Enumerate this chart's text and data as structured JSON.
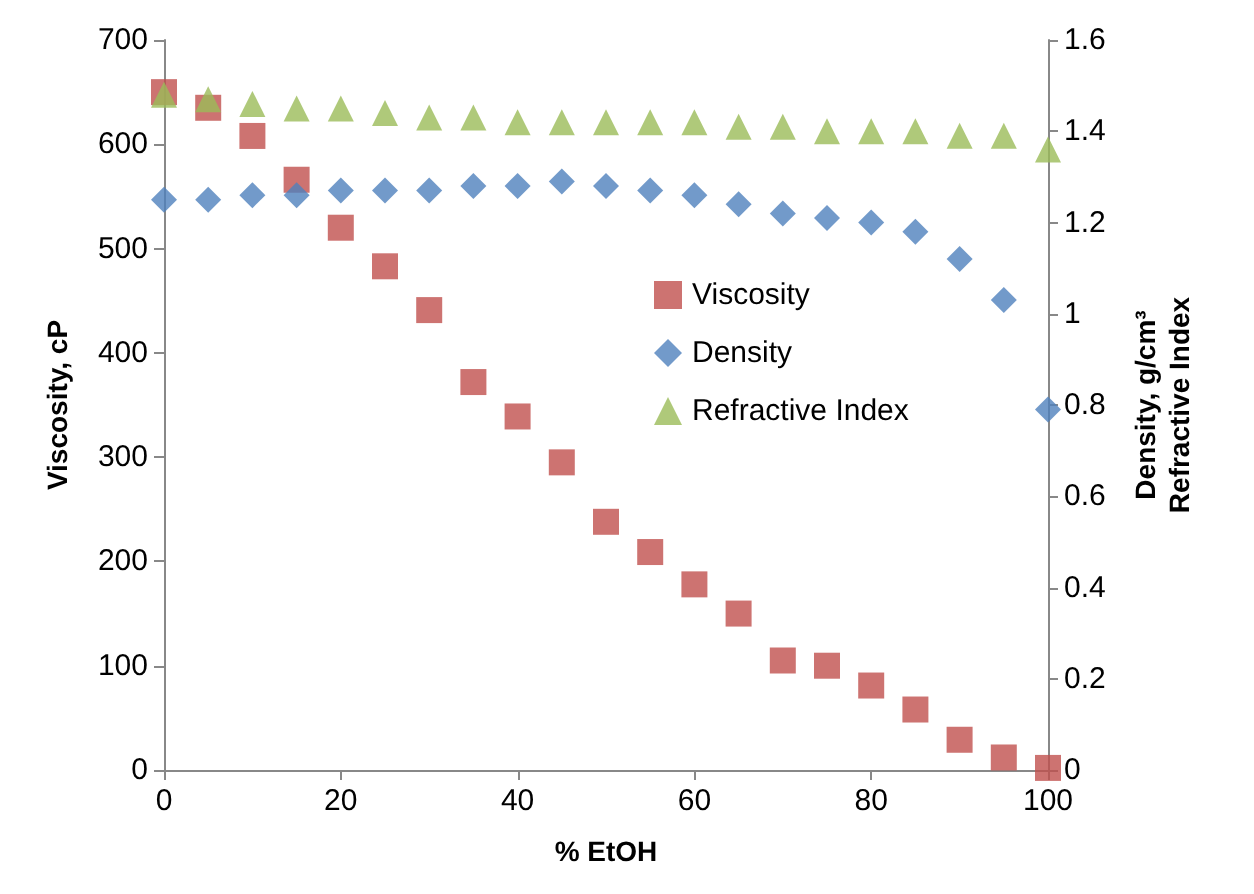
{
  "chart_data": {
    "type": "scatter",
    "xlabel": "% EtOH",
    "ylabel": "Viscosity, cP",
    "y2label": "Density, g/cm³\nRefractive Index",
    "x": [
      0,
      5,
      10,
      15,
      20,
      25,
      30,
      35,
      40,
      45,
      50,
      55,
      60,
      65,
      70,
      75,
      80,
      85,
      90,
      95,
      100
    ],
    "series": [
      {
        "name": "Viscosity",
        "color": "#c0504d",
        "marker": "square",
        "values": [
          650,
          635,
          608,
          566,
          520,
          483,
          441,
          372,
          339,
          295,
          238,
          209,
          178,
          150,
          105,
          100,
          81,
          58,
          29,
          12,
          2
        ]
      },
      {
        "name": "Density",
        "color": "#4f81bd",
        "marker": "diamond",
        "axis": "y2",
        "values": [
          1.25,
          1.25,
          1.26,
          1.26,
          1.27,
          1.27,
          1.27,
          1.28,
          1.28,
          1.29,
          1.28,
          1.27,
          1.26,
          1.24,
          1.22,
          1.21,
          1.2,
          1.18,
          1.12,
          1.03,
          0.79
        ]
      },
      {
        "name": "Refractive Index",
        "color": "#9bbb59",
        "marker": "triangle",
        "axis": "y2",
        "values": [
          1.48,
          1.47,
          1.46,
          1.45,
          1.45,
          1.44,
          1.43,
          1.43,
          1.42,
          1.42,
          1.42,
          1.42,
          1.42,
          1.41,
          1.41,
          1.4,
          1.4,
          1.4,
          1.39,
          1.39,
          1.36
        ]
      }
    ],
    "xlim": [
      0,
      100
    ],
    "xticks": [
      0,
      20,
      40,
      60,
      80,
      100
    ],
    "ylim": [
      0,
      700
    ],
    "yticks": [
      0,
      100,
      200,
      300,
      400,
      500,
      600,
      700
    ],
    "y2lim": [
      0,
      1.6
    ],
    "y2ticks": [
      0,
      0.2,
      0.4,
      0.6,
      0.8,
      1,
      1.2,
      1.4,
      1.6
    ],
    "grid": false,
    "legend": "right"
  }
}
